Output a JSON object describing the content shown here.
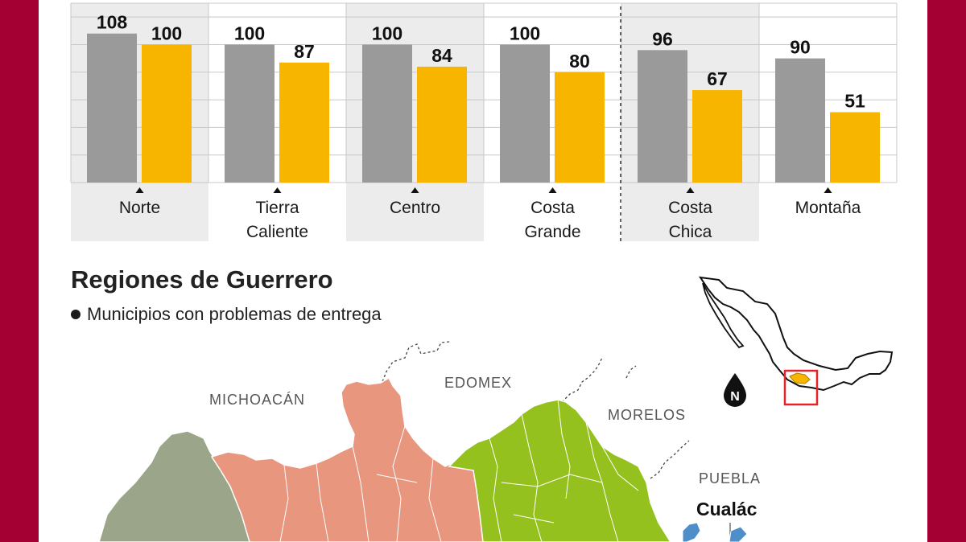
{
  "chart_data": {
    "type": "bar",
    "categories": [
      "Norte",
      "Tierra Caliente",
      "Centro",
      "Costa Grande",
      "Costa Chica",
      "Montaña"
    ],
    "category_lines": [
      [
        "Norte"
      ],
      [
        "Tierra",
        "Caliente"
      ],
      [
        "Centro"
      ],
      [
        "Costa",
        "Grande"
      ],
      [
        "Costa",
        "Chica"
      ],
      [
        "Montaña"
      ]
    ],
    "series": [
      {
        "values": [
          108,
          100,
          100,
          100,
          96,
          90
        ],
        "color": "#9a9a9a"
      },
      {
        "values": [
          100,
          87,
          84,
          80,
          67,
          51
        ],
        "color": "#f7b500"
      }
    ],
    "ylim": [
      0,
      130
    ],
    "grid": true
  },
  "map": {
    "title": "Regiones de Guerrero",
    "legend": "Municipios con problemas de entrega",
    "states": {
      "michoacan": "MICHOACÁN",
      "edomex": "EDOMEX",
      "morelos": "MORELOS",
      "puebla": "PUEBLA"
    },
    "municipality": "Cualác",
    "compass": "N",
    "colors": {
      "norte": "#f7b500",
      "tierra_caliente": "#9aa589",
      "centro": "#e8967e",
      "montana": "#95c11f",
      "cualac": "#4f8fc9",
      "frame": "#a50034",
      "highlight_box": "#e3242b"
    }
  }
}
